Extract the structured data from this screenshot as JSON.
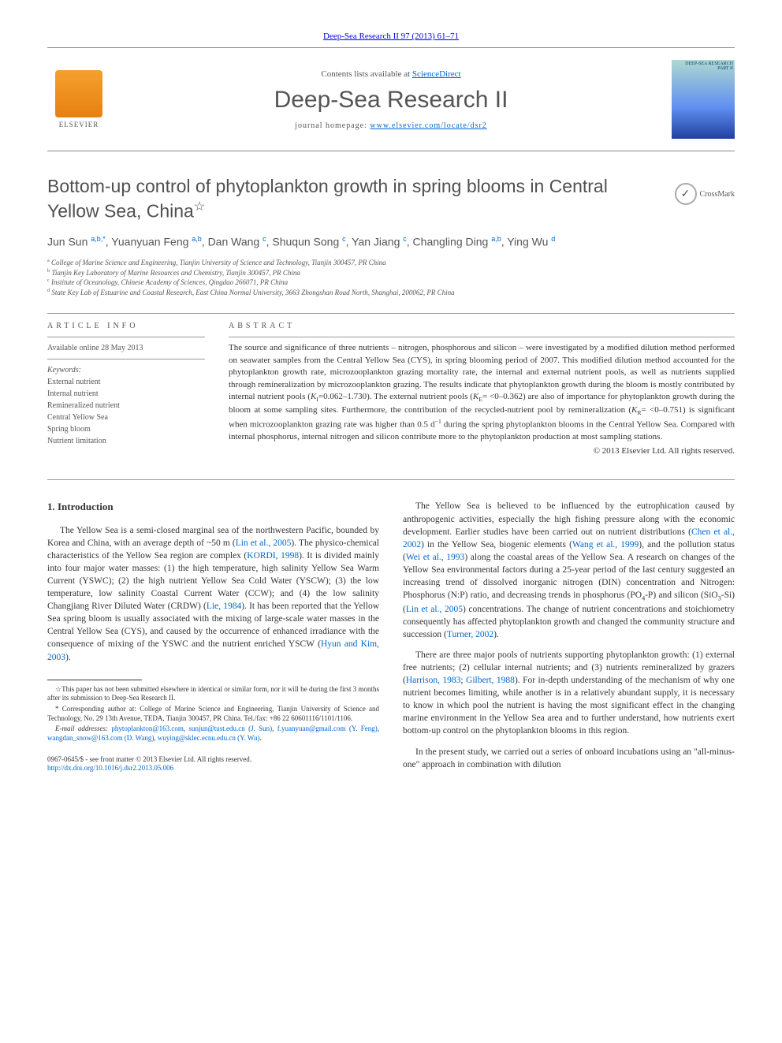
{
  "journal_ref": "Deep-Sea Research II 97 (2013) 61–71",
  "header": {
    "contents_prefix": "Contents lists available at ",
    "contents_link": "ScienceDirect",
    "journal_title": "Deep-Sea Research II",
    "homepage_prefix": "journal homepage: ",
    "homepage_link": "www.elsevier.com/locate/dsr2",
    "publisher": "ELSEVIER",
    "cover_label_1": "DEEP-SEA RESEARCH",
    "cover_label_2": "PART II"
  },
  "crossmark": "CrossMark",
  "article": {
    "title": "Bottom-up control of phytoplankton growth in spring blooms in Central Yellow Sea, China",
    "title_marker": "☆",
    "authors_html": "Jun Sun <sup>a,b,*</sup>, Yuanyuan Feng <sup>a,b</sup>, Dan Wang <sup>c</sup>, Shuqun Song <sup>c</sup>, Yan Jiang <sup>c</sup>, Changling Ding <sup>a,b</sup>, Ying Wu <sup>d</sup>",
    "affiliations": [
      {
        "sup": "a",
        "text": "College of Marine Science and Engineering, Tianjin University of Science and Technology, Tianjin 300457, PR China"
      },
      {
        "sup": "b",
        "text": "Tianjin Key Laboratory of Marine Resources and Chemistry, Tianjin 300457, PR China"
      },
      {
        "sup": "c",
        "text": "Institute of Oceanology, Chinese Academy of Sciences, Qingdao 266071, PR China"
      },
      {
        "sup": "d",
        "text": "State Key Lab of Estuarine and Coastal Research, East China Normal University, 3663 Zhongshan Road North, Shanghai, 200062, PR China"
      }
    ]
  },
  "info": {
    "head": "article info",
    "available": "Available online 28 May 2013",
    "keywords_label": "Keywords:",
    "keywords": [
      "External nutrient",
      "Internal nutrient",
      "Remineralized nutrient",
      "Central Yellow Sea",
      "Spring bloom",
      "Nutrient limitation"
    ]
  },
  "abstract": {
    "head": "abstract",
    "text_html": "The source and significance of three nutrients – nitrogen, phosphorous and silicon – were investigated by a modified dilution method performed on seawater samples from the Central Yellow Sea (CYS), in spring blooming period of 2007. This modified dilution method accounted for the phytoplankton growth rate, microzooplankton grazing mortality rate, the internal and external nutrient pools, as well as nutrients supplied through remineralization by microzooplankton grazing. The results indicate that phytoplankton growth during the bloom is mostly contributed by internal nutrient pools (<span class=\"ital\">K</span><sub>I</sub>=0.062–1.730). The external nutrient pools (<span class=\"ital\">K</span><sub>E</sub>= &lt;0–0.362) are also of importance for phytoplankton growth during the bloom at some sampling sites. Furthermore, the contribution of the recycled-nutrient pool by remineralization (<span class=\"ital\">K</span><sub>R</sub>= &lt;0–0.751) is significant when microzooplankton grazing rate was higher than 0.5 d<sup>−1</sup> during the spring phytoplankton blooms in the Central Yellow Sea. Compared with internal phosphorus, internal nitrogen and silicon contribute more to the phytoplankton production at most sampling stations.",
    "copyright": "© 2013 Elsevier Ltd. All rights reserved."
  },
  "body": {
    "section_heading": "1. Introduction",
    "col1_paras": [
      "The Yellow Sea is a semi-closed marginal sea of the northwestern Pacific, bounded by Korea and China, with an average depth of ~50 m (<a href=\"#\">Lin et al., 2005</a>). The physico-chemical characteristics of the Yellow Sea region are complex (<a href=\"#\">KORDI, 1998</a>). It is divided mainly into four major water masses: (1) the high temperature, high salinity Yellow Sea Warm Current (YSWC); (2) the high nutrient Yellow Sea Cold Water (YSCW); (3) the low temperature, low salinity Coastal Current Water (CCW); and (4) the low salinity Changjiang River Diluted Water (CRDW) (<a href=\"#\">Lie, 1984</a>). It has been reported that the Yellow Sea spring bloom is usually associated with the mixing of large-scale water masses in the Central Yellow Sea (CYS), and caused by the occurrence of enhanced irradiance with the consequence of mixing of the YSWC and the nutrient enriched YSCW (<a href=\"#\">Hyun and Kim, 2003</a>)."
    ],
    "col2_paras": [
      "The Yellow Sea is believed to be influenced by the eutrophication caused by anthropogenic activities, especially the high fishing pressure along with the economic development. Earlier studies have been carried out on nutrient distributions (<a href=\"#\">Chen et al., 2002</a>) in the Yellow Sea, biogenic elements (<a href=\"#\">Wang et al., 1999</a>), and the pollution status (<a href=\"#\">Wei et al., 1993</a>) along the coastal areas of the Yellow Sea. A research on changes of the Yellow Sea environmental factors during a 25-year period of the last century suggested an increasing trend of dissolved inorganic nitrogen (DIN) concentration and Nitrogen: Phosphorus (N:P) ratio, and decreasing trends in phosphorus (PO<sub>4</sub>-P) and silicon (SiO<sub>3</sub>-Si) (<a href=\"#\">Lin et al., 2005</a>) concentrations. The change of nutrient concentrations and stoichiometry consequently has affected phytoplankton growth and changed the community structure and succession (<a href=\"#\">Turner, 2002</a>).",
      "There are three major pools of nutrients supporting phytoplankton growth: (1) external free nutrients; (2) cellular internal nutrients; and (3) nutrients remineralized by grazers (<a href=\"#\">Harrison, 1983</a>; <a href=\"#\">Gilbert, 1988</a>). For in-depth understanding of the mechanism of why one nutrient becomes limiting, while another is in a relatively abundant supply, it is necessary to know in which pool the nutrient is having the most significant effect in the changing marine environment in the Yellow Sea area and to further understand, how nutrients exert bottom-up control on the phytoplankton blooms in this region.",
      "In the present study, we carried out a series of onboard incubations using an \"all-minus-one\" approach in combination with dilution"
    ]
  },
  "footnotes": {
    "star": "☆This paper has not been submitted elsewhere in identical or similar form, nor it will be during the first 3 months after its submission to Deep-Sea Research II.",
    "corresponding": "* Corresponding author at: College of Marine Science and Engineering, Tianjin University of Science and Technology, No. 29 13th Avenue, TEDA, Tianjin 300457, PR China. Tel./fax: +86 22 60601116/1101/1106.",
    "emails_label": "E-mail addresses:",
    "emails_html": " <a href=\"#\">phytoplankton@163.com</a>, <a href=\"#\">sunjun@tust.edu.cn (J. Sun)</a>, <a href=\"#\">f.yuanyuan@gmail.com (Y. Feng)</a>, <a href=\"#\">wangdan_snow@163.com (D. Wang)</a>, <a href=\"#\">wuying@sklec.ecnu.edu.cn (Y. Wu)</a>."
  },
  "bottom": {
    "line1": "0967-0645/$ - see front matter © 2013 Elsevier Ltd. All rights reserved.",
    "line2": "http://dx.doi.org/10.1016/j.dsr2.2013.05.006"
  },
  "colors": {
    "link": "#0066cc",
    "text": "#333333",
    "muted": "#555555",
    "border": "#999999"
  },
  "typography": {
    "body_pt": 11.5,
    "abstract_pt": 11,
    "title_pt": 23,
    "journal_title_pt": 30,
    "footnote_pt": 9,
    "font_serif": "Georgia, Times New Roman, serif",
    "font_sans": "Arial, Helvetica, sans-serif"
  }
}
